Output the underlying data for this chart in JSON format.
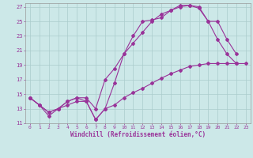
{
  "xlabel": "Windchill (Refroidissement éolien,°C)",
  "bg_color": "#cce8e8",
  "grid_color": "#aacccc",
  "line_color": "#993399",
  "xlim": [
    -0.5,
    23.5
  ],
  "ylim": [
    11,
    27.5
  ],
  "xticks": [
    0,
    1,
    2,
    3,
    4,
    5,
    6,
    7,
    8,
    9,
    10,
    11,
    12,
    13,
    14,
    15,
    16,
    17,
    18,
    19,
    20,
    21,
    22,
    23
  ],
  "yticks": [
    11,
    13,
    15,
    17,
    19,
    21,
    23,
    25,
    27
  ],
  "line1_x": [
    0,
    1,
    2,
    3,
    4,
    5,
    6,
    7,
    8,
    9,
    10,
    11,
    12,
    13,
    14,
    15,
    16,
    17,
    18,
    19,
    20,
    21,
    22,
    23
  ],
  "line1_y": [
    14.5,
    13.5,
    12.5,
    13.0,
    14.0,
    14.5,
    14.0,
    11.5,
    13.0,
    16.5,
    20.5,
    23.0,
    25.0,
    25.2,
    25.5,
    26.5,
    27.2,
    27.2,
    26.8,
    25.0,
    22.5,
    20.5,
    19.2,
    null
  ],
  "line2_x": [
    0,
    1,
    2,
    3,
    4,
    5,
    6,
    7,
    8,
    9,
    10,
    11,
    12,
    13,
    14,
    15,
    16,
    17,
    18,
    19,
    20,
    21,
    22,
    23
  ],
  "line2_y": [
    14.5,
    13.5,
    12.5,
    13.0,
    14.0,
    14.5,
    14.5,
    13.0,
    17.0,
    18.5,
    20.5,
    22.0,
    23.5,
    25.0,
    26.0,
    26.5,
    27.0,
    27.2,
    27.0,
    25.0,
    25.0,
    22.5,
    20.5,
    null
  ],
  "line3_x": [
    0,
    1,
    2,
    3,
    4,
    5,
    6,
    7,
    8,
    9,
    10,
    11,
    12,
    13,
    14,
    15,
    16,
    17,
    18,
    19,
    20,
    21,
    22,
    23
  ],
  "line3_y": [
    14.5,
    13.5,
    12.0,
    13.0,
    13.5,
    14.0,
    14.0,
    11.5,
    13.0,
    13.5,
    14.5,
    15.2,
    15.8,
    16.5,
    17.2,
    17.8,
    18.3,
    18.8,
    19.0,
    19.2,
    19.2,
    19.2,
    19.2,
    19.2
  ]
}
